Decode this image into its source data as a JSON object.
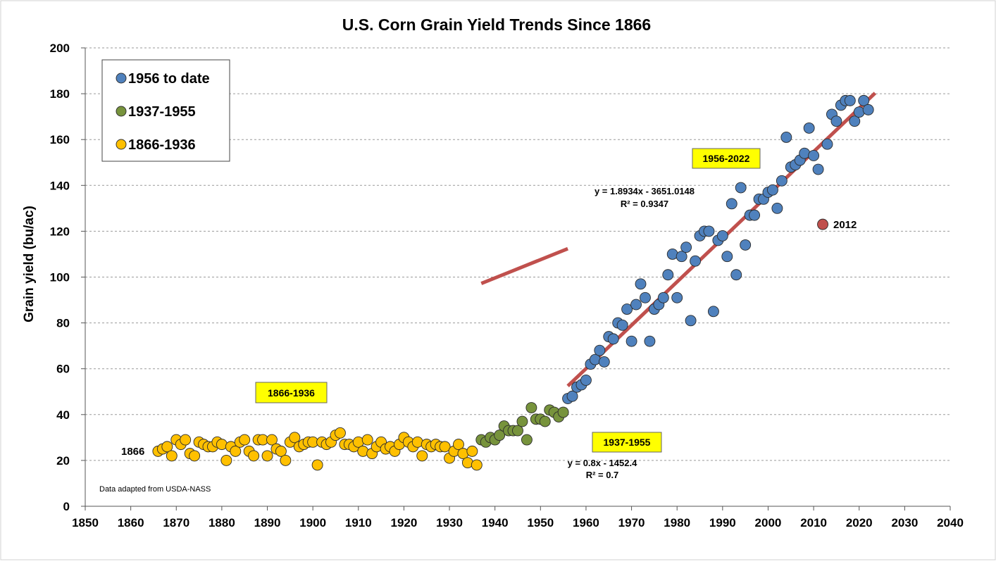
{
  "chart_data": {
    "type": "scatter",
    "title": "U.S. Corn Grain Yield Trends Since 1866",
    "xlabel": "",
    "ylabel": "Grain yield (bu/ac)",
    "xlim": [
      1850,
      2040
    ],
    "ylim": [
      0,
      200
    ],
    "xticks": [
      1850,
      1860,
      1870,
      1880,
      1890,
      1900,
      1910,
      1920,
      1930,
      1940,
      1950,
      1960,
      1970,
      1980,
      1990,
      2000,
      2010,
      2020,
      2030,
      2040
    ],
    "yticks": [
      0,
      20,
      40,
      60,
      80,
      100,
      120,
      140,
      160,
      180,
      200
    ],
    "grid": "horizontal dashed",
    "legend_position": "top-left",
    "colors": {
      "modern": "#4f81bd",
      "mid": "#77933c",
      "early": "#ffc000",
      "outlier": "#c0504d",
      "trend": "#c0504d",
      "label_box": "#ffff00"
    },
    "series": [
      {
        "name": "1956 to date",
        "color_key": "modern",
        "points": [
          [
            1956,
            47
          ],
          [
            1957,
            48
          ],
          [
            1958,
            52
          ],
          [
            1959,
            53
          ],
          [
            1960,
            55
          ],
          [
            1961,
            62
          ],
          [
            1962,
            64
          ],
          [
            1963,
            68
          ],
          [
            1964,
            63
          ],
          [
            1965,
            74
          ],
          [
            1966,
            73
          ],
          [
            1967,
            80
          ],
          [
            1968,
            79
          ],
          [
            1969,
            86
          ],
          [
            1970,
            72
          ],
          [
            1971,
            88
          ],
          [
            1972,
            97
          ],
          [
            1973,
            91
          ],
          [
            1974,
            72
          ],
          [
            1975,
            86
          ],
          [
            1976,
            88
          ],
          [
            1977,
            91
          ],
          [
            1978,
            101
          ],
          [
            1979,
            110
          ],
          [
            1980,
            91
          ],
          [
            1981,
            109
          ],
          [
            1982,
            113
          ],
          [
            1983,
            81
          ],
          [
            1984,
            107
          ],
          [
            1985,
            118
          ],
          [
            1986,
            120
          ],
          [
            1987,
            120
          ],
          [
            1988,
            85
          ],
          [
            1989,
            116
          ],
          [
            1990,
            118
          ],
          [
            1991,
            109
          ],
          [
            1992,
            132
          ],
          [
            1993,
            101
          ],
          [
            1994,
            139
          ],
          [
            1995,
            114
          ],
          [
            1996,
            127
          ],
          [
            1997,
            127
          ],
          [
            1998,
            134
          ],
          [
            1999,
            134
          ],
          [
            2000,
            137
          ],
          [
            2001,
            138
          ],
          [
            2002,
            130
          ],
          [
            2003,
            142
          ],
          [
            2004,
            161
          ],
          [
            2005,
            148
          ],
          [
            2006,
            149
          ],
          [
            2007,
            151
          ],
          [
            2008,
            154
          ],
          [
            2009,
            165
          ],
          [
            2010,
            153
          ],
          [
            2011,
            147
          ],
          [
            2013,
            158
          ],
          [
            2014,
            171
          ],
          [
            2015,
            168
          ],
          [
            2016,
            175
          ],
          [
            2017,
            177
          ],
          [
            2018,
            177
          ],
          [
            2019,
            168
          ],
          [
            2020,
            172
          ],
          [
            2021,
            177
          ],
          [
            2022,
            173
          ]
        ]
      },
      {
        "name": "1937-1955",
        "color_key": "mid",
        "points": [
          [
            1937,
            29
          ],
          [
            1938,
            28
          ],
          [
            1939,
            30
          ],
          [
            1940,
            29
          ],
          [
            1941,
            31
          ],
          [
            1942,
            35
          ],
          [
            1943,
            33
          ],
          [
            1944,
            33
          ],
          [
            1945,
            33
          ],
          [
            1946,
            37
          ],
          [
            1947,
            29
          ],
          [
            1948,
            43
          ],
          [
            1949,
            38
          ],
          [
            1950,
            38
          ],
          [
            1951,
            37
          ],
          [
            1952,
            42
          ],
          [
            1953,
            41
          ],
          [
            1954,
            39
          ],
          [
            1955,
            41
          ]
        ]
      },
      {
        "name": "1866-1936",
        "color_key": "early",
        "points": [
          [
            1866,
            24
          ],
          [
            1867,
            25
          ],
          [
            1868,
            26
          ],
          [
            1869,
            22
          ],
          [
            1870,
            29
          ],
          [
            1871,
            27
          ],
          [
            1872,
            29
          ],
          [
            1873,
            23
          ],
          [
            1874,
            22
          ],
          [
            1875,
            28
          ],
          [
            1876,
            27
          ],
          [
            1877,
            26
          ],
          [
            1878,
            26
          ],
          [
            1879,
            28
          ],
          [
            1880,
            27
          ],
          [
            1881,
            20
          ],
          [
            1882,
            26
          ],
          [
            1883,
            24
          ],
          [
            1884,
            28
          ],
          [
            1885,
            29
          ],
          [
            1886,
            24
          ],
          [
            1887,
            22
          ],
          [
            1888,
            29
          ],
          [
            1889,
            29
          ],
          [
            1890,
            22
          ],
          [
            1891,
            29
          ],
          [
            1892,
            25
          ],
          [
            1893,
            24
          ],
          [
            1894,
            20
          ],
          [
            1895,
            28
          ],
          [
            1896,
            30
          ],
          [
            1897,
            26
          ],
          [
            1898,
            27
          ],
          [
            1899,
            28
          ],
          [
            1900,
            28
          ],
          [
            1901,
            18
          ],
          [
            1902,
            28
          ],
          [
            1903,
            27
          ],
          [
            1904,
            28
          ],
          [
            1905,
            31
          ],
          [
            1906,
            32
          ],
          [
            1907,
            27
          ],
          [
            1908,
            27
          ],
          [
            1909,
            26
          ],
          [
            1910,
            28
          ],
          [
            1911,
            24
          ],
          [
            1912,
            29
          ],
          [
            1913,
            23
          ],
          [
            1914,
            26
          ],
          [
            1915,
            28
          ],
          [
            1916,
            25
          ],
          [
            1917,
            26
          ],
          [
            1918,
            24
          ],
          [
            1919,
            27
          ],
          [
            1920,
            30
          ],
          [
            1921,
            28
          ],
          [
            1922,
            26
          ],
          [
            1923,
            28
          ],
          [
            1924,
            22
          ],
          [
            1925,
            27
          ],
          [
            1926,
            26
          ],
          [
            1927,
            27
          ],
          [
            1928,
            26
          ],
          [
            1929,
            26
          ],
          [
            1930,
            21
          ],
          [
            1931,
            24
          ],
          [
            1932,
            27
          ],
          [
            1933,
            23
          ],
          [
            1934,
            19
          ],
          [
            1935,
            24
          ],
          [
            1936,
            18
          ]
        ]
      },
      {
        "name": "2012",
        "color_key": "outlier",
        "points": [
          [
            2012,
            123
          ]
        ]
      }
    ],
    "trendlines": [
      {
        "name": "1937-1955",
        "x_range": [
          1937,
          1956
        ],
        "slope": 0.8,
        "intercept": -1452.4
      },
      {
        "name": "1956-2022",
        "x_range": [
          1956,
          2023.5
        ],
        "slope": 1.8934,
        "intercept": -3651.0148
      }
    ],
    "annotations": {
      "label_1866": "1866",
      "label_2012": "2012",
      "box_1866_1936": "1866-1936",
      "box_1937_1955": "1937-1955",
      "box_1956_2022": "1956-2022",
      "eq_1937_1955_line1": "y = 0.8x - 1452.4",
      "eq_1937_1955_line2": "R² = 0.7",
      "eq_1956_2022_line1": "y = 1.8934x - 3651.0148",
      "eq_1956_2022_line2": "R² = 0.9347",
      "source": "Data adapted from USDA-NASS"
    },
    "legend": [
      {
        "label": "1956 to date",
        "color_key": "modern"
      },
      {
        "label": "1937-1955",
        "color_key": "mid"
      },
      {
        "label": "1866-1936",
        "color_key": "early"
      }
    ]
  }
}
